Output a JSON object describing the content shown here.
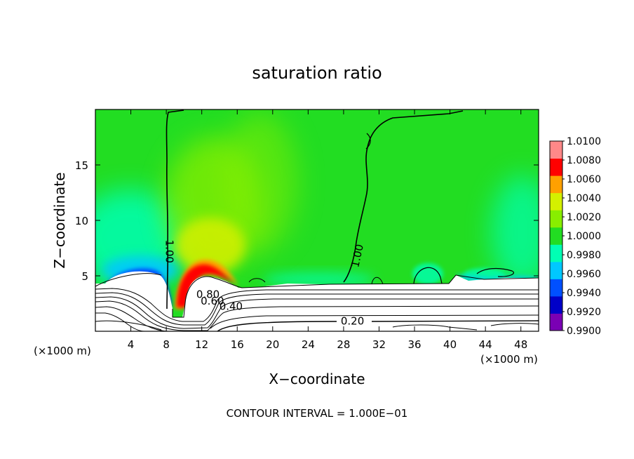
{
  "chart_data": {
    "type": "heatmap",
    "title": "saturation ratio",
    "xlabel": "X−coordinate",
    "ylabel": "Z−coordinate",
    "x_unit_left": "(×1000 m)",
    "x_unit_right": "(×1000 m)",
    "footer": "CONTOUR INTERVAL = 1.000E−01",
    "xlim": [
      0,
      50
    ],
    "ylim": [
      0,
      20
    ],
    "x_ticks": [
      4,
      8,
      12,
      16,
      20,
      24,
      28,
      32,
      36,
      40,
      44,
      48
    ],
    "x_tick_labels": [
      "4",
      "8",
      "12",
      "16",
      "20",
      "24",
      "28",
      "32",
      "36",
      "40",
      "44",
      "48"
    ],
    "y_ticks": [
      5,
      10,
      15
    ],
    "y_tick_labels": [
      "5",
      "10",
      "15"
    ],
    "grid": false,
    "background_value": 1.0,
    "colorbar": {
      "position": "right",
      "levels": [
        0.99,
        0.992,
        0.994,
        0.996,
        0.998,
        1.0,
        1.002,
        1.004,
        1.006,
        1.008,
        1.01
      ],
      "labels": [
        "0.9900",
        "0.9920",
        "0.9940",
        "0.9960",
        "0.9980",
        "1.0000",
        "1.0020",
        "1.0040",
        "1.0060",
        "1.0080",
        "1.0100"
      ],
      "colors": [
        "#7a00b4",
        "#0000c8",
        "#0050ff",
        "#00c8ff",
        "#00ffb4",
        "#22dd22",
        "#88ee00",
        "#d4f000",
        "#ffa000",
        "#ff0000",
        "#ff8888"
      ]
    },
    "contour_labels": [
      {
        "text": "1.00",
        "x": 8.3,
        "y": 7.2,
        "rotate": 90
      },
      {
        "text": "1.00",
        "x": 29.6,
        "y": 6.8,
        "rotate": -78
      },
      {
        "text": "0.80",
        "x": 12.7,
        "y": 3.3,
        "rotate": 0
      },
      {
        "text": "0.60",
        "x": 13.2,
        "y": 2.7,
        "rotate": 0
      },
      {
        "text": "0.40",
        "x": 15.3,
        "y": 2.2,
        "rotate": 0
      },
      {
        "text": "0.20",
        "x": 29.0,
        "y": 0.9,
        "rotate": 0
      }
    ],
    "colorcolors": {
      "low_air": "#ffffff",
      "contour": "#000000"
    }
  }
}
